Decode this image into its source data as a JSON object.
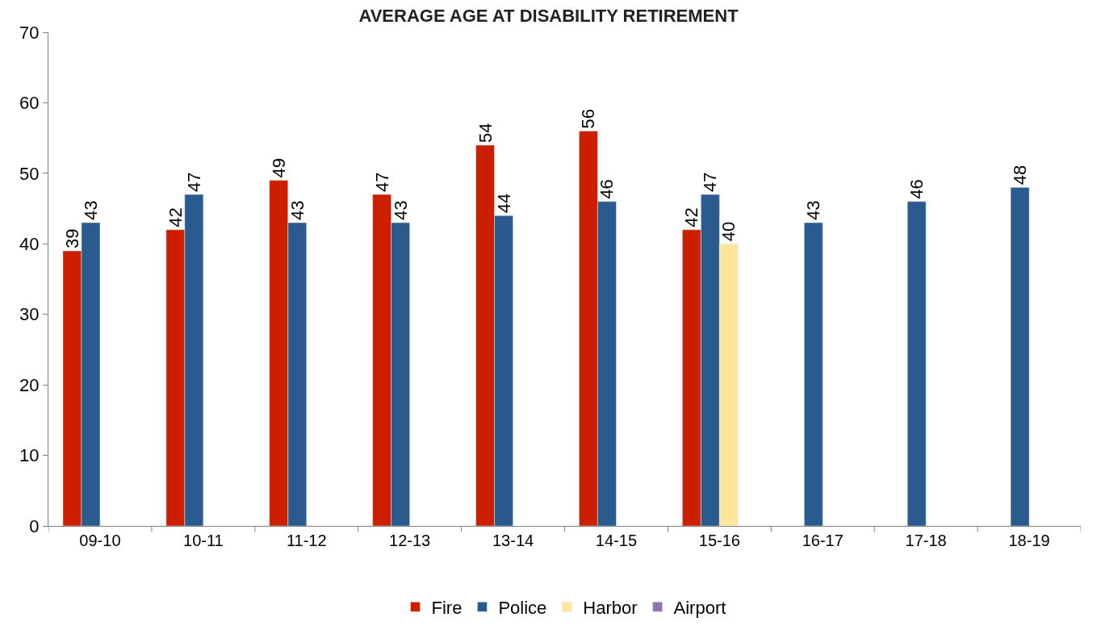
{
  "chart_data": {
    "type": "bar",
    "title": "AVERAGE AGE AT DISABILITY RETIREMENT",
    "categories": [
      "09-10",
      "10-11",
      "11-12",
      "12-13",
      "13-14",
      "14-15",
      "15-16",
      "16-17",
      "17-18",
      "18-19"
    ],
    "series": [
      {
        "name": "Fire",
        "color": "#cc1f00",
        "values": [
          39,
          42,
          49,
          47,
          54,
          56,
          42,
          null,
          null,
          null
        ]
      },
      {
        "name": "Police",
        "color": "#2a5b8e",
        "values": [
          43,
          47,
          43,
          43,
          44,
          46,
          47,
          43,
          46,
          48
        ]
      },
      {
        "name": "Harbor",
        "color": "#fde59c",
        "values": [
          null,
          null,
          null,
          null,
          null,
          null,
          40,
          null,
          null,
          null
        ]
      },
      {
        "name": "Airport",
        "color": "#8f72b0",
        "values": [
          null,
          null,
          null,
          null,
          null,
          null,
          null,
          null,
          null,
          null
        ]
      }
    ],
    "ylim": [
      0,
      70
    ],
    "yticks": [
      0,
      10,
      20,
      30,
      40,
      50,
      60,
      70
    ],
    "legend": "bottom",
    "data_labels": true
  }
}
